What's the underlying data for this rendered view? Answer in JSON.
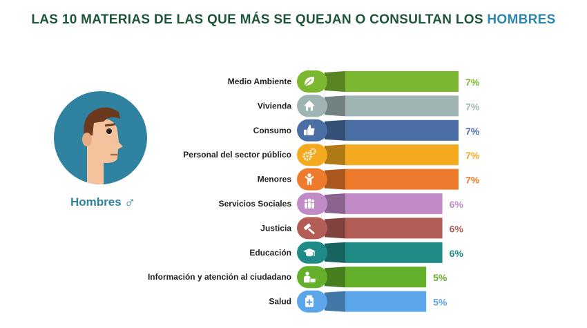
{
  "title": {
    "main": "LAS 10 MATERIAS DE LAS QUE MÁS SE QUEJAN O CONSULTAN LOS",
    "highlight": "HOMBRES"
  },
  "profile": {
    "label": "Hombres",
    "symbol": "♂",
    "icon": "man-face-icon"
  },
  "chart_data": {
    "type": "bar",
    "orientation": "horizontal",
    "unit": "%",
    "xlim": [
      0,
      7
    ],
    "categories": [
      "Medio Ambiente",
      "Vivienda",
      "Consumo",
      "Personal del sector público",
      "Menores",
      "Servicios Sociales",
      "Justicia",
      "Educación",
      "Información y atención al ciudadano",
      "Salud"
    ],
    "values": [
      7,
      7,
      7,
      7,
      7,
      6,
      6,
      6,
      5,
      5
    ],
    "labels": [
      "7%",
      "7%",
      "7%",
      "7%",
      "7%",
      "6%",
      "6%",
      "6%",
      "5%",
      "5%"
    ],
    "colors": [
      "#7cb82f",
      "#9fb3b3",
      "#4a6fa5",
      "#f4a91f",
      "#ee7a2b",
      "#c08bc6",
      "#b25d55",
      "#208b86",
      "#64b02a",
      "#5aa6e8"
    ],
    "icons": [
      "leaf-icon",
      "house-icon",
      "thumbs-up-icon",
      "gears-icon",
      "child-icon",
      "group-icon",
      "gavel-icon",
      "graduation-cap-icon",
      "info-person-icon",
      "medicine-icon"
    ]
  }
}
